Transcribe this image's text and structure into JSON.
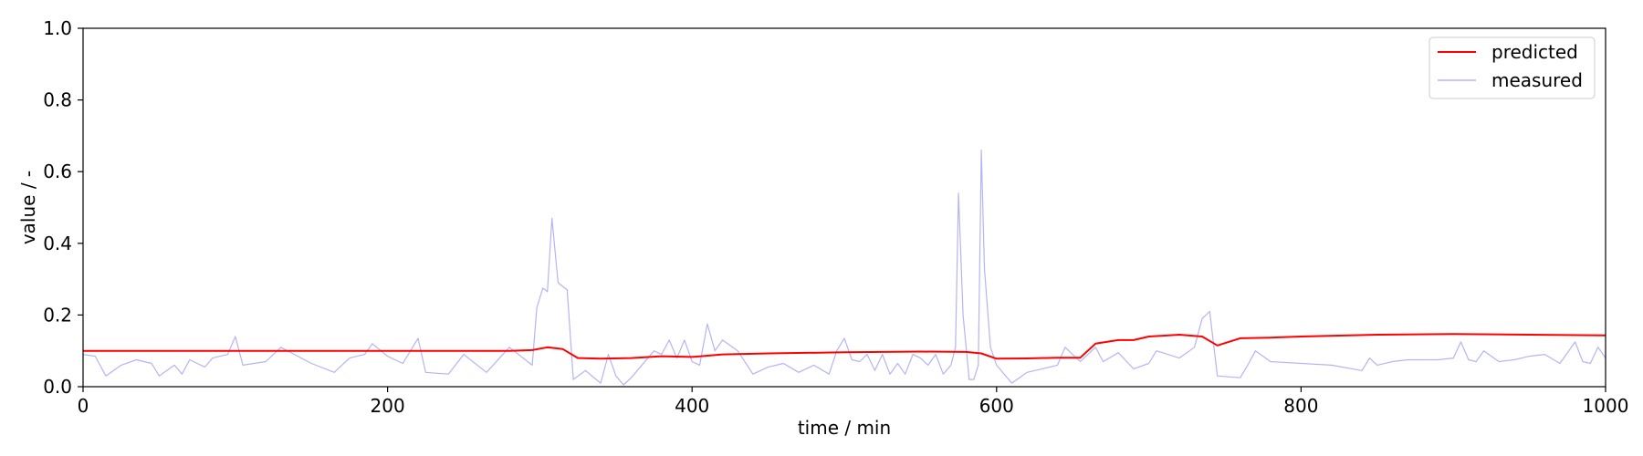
{
  "chart_data": {
    "type": "line",
    "title": "",
    "xlabel": "time / min",
    "ylabel": "value / -",
    "xlim": [
      0,
      1000
    ],
    "ylim": [
      0,
      1.0
    ],
    "xticks": [
      0,
      200,
      400,
      600,
      800,
      1000
    ],
    "xtick_labels": [
      "0",
      "200",
      "400",
      "600",
      "800",
      "1000"
    ],
    "yticks": [
      0,
      0.2,
      0.4,
      0.6,
      0.8,
      1.0
    ],
    "ytick_labels": [
      "0.0",
      "0.2",
      "0.4",
      "0.6",
      "0.8",
      "1.0"
    ],
    "grid": false,
    "legend_position": "top-right",
    "series": [
      {
        "name": "predicted",
        "color": "#ff0000",
        "x": [
          0,
          50,
          100,
          150,
          200,
          250,
          280,
          295,
          305,
          315,
          325,
          340,
          360,
          380,
          400,
          420,
          450,
          500,
          550,
          580,
          590,
          600,
          620,
          640,
          655,
          665,
          680,
          690,
          700,
          720,
          735,
          745,
          760,
          780,
          800,
          850,
          900,
          950,
          1000
        ],
        "y": [
          0.1,
          0.1,
          0.1,
          0.1,
          0.1,
          0.1,
          0.1,
          0.102,
          0.11,
          0.105,
          0.08,
          0.078,
          0.08,
          0.085,
          0.083,
          0.09,
          0.093,
          0.096,
          0.098,
          0.097,
          0.093,
          0.078,
          0.079,
          0.081,
          0.081,
          0.12,
          0.13,
          0.13,
          0.14,
          0.145,
          0.14,
          0.115,
          0.135,
          0.137,
          0.14,
          0.145,
          0.147,
          0.145,
          0.143
        ]
      },
      {
        "name": "measured",
        "color": "#b4b4f5",
        "x": [
          0,
          8,
          15,
          25,
          35,
          45,
          50,
          55,
          60,
          65,
          70,
          75,
          80,
          85,
          95,
          100,
          105,
          120,
          130,
          150,
          165,
          175,
          185,
          190,
          200,
          210,
          220,
          225,
          240,
          250,
          265,
          280,
          295,
          298,
          302,
          305,
          308,
          312,
          318,
          322,
          330,
          340,
          345,
          350,
          355,
          360,
          375,
          380,
          385,
          390,
          395,
          400,
          405,
          410,
          415,
          420,
          430,
          440,
          450,
          460,
          470,
          480,
          490,
          495,
          500,
          505,
          510,
          515,
          520,
          525,
          530,
          535,
          540,
          545,
          550,
          555,
          560,
          565,
          570,
          573,
          575,
          578,
          582,
          585,
          588,
          590,
          592,
          596,
          600,
          610,
          620,
          630,
          640,
          645,
          655,
          665,
          670,
          680,
          690,
          700,
          705,
          720,
          730,
          735,
          740,
          745,
          760,
          765,
          770,
          780,
          820,
          840,
          845,
          850,
          860,
          870,
          880,
          890,
          900,
          905,
          910,
          915,
          920,
          930,
          940,
          950,
          960,
          970,
          980,
          985,
          990,
          995,
          1000
        ],
        "y": [
          0.09,
          0.085,
          0.03,
          0.06,
          0.075,
          0.065,
          0.03,
          0.045,
          0.06,
          0.035,
          0.075,
          0.065,
          0.055,
          0.08,
          0.09,
          0.14,
          0.06,
          0.07,
          0.11,
          0.065,
          0.04,
          0.08,
          0.09,
          0.12,
          0.085,
          0.065,
          0.135,
          0.04,
          0.035,
          0.09,
          0.04,
          0.11,
          0.06,
          0.22,
          0.275,
          0.265,
          0.47,
          0.29,
          0.27,
          0.02,
          0.045,
          0.01,
          0.09,
          0.03,
          0.005,
          0.025,
          0.1,
          0.09,
          0.13,
          0.08,
          0.13,
          0.07,
          0.06,
          0.175,
          0.1,
          0.13,
          0.1,
          0.035,
          0.055,
          0.065,
          0.04,
          0.06,
          0.035,
          0.1,
          0.135,
          0.075,
          0.07,
          0.09,
          0.045,
          0.09,
          0.035,
          0.065,
          0.035,
          0.09,
          0.08,
          0.06,
          0.09,
          0.035,
          0.06,
          0.11,
          0.54,
          0.2,
          0.02,
          0.02,
          0.06,
          0.66,
          0.33,
          0.11,
          0.06,
          0.01,
          0.04,
          0.05,
          0.06,
          0.11,
          0.07,
          0.11,
          0.07,
          0.095,
          0.05,
          0.065,
          0.1,
          0.08,
          0.11,
          0.19,
          0.21,
          0.03,
          0.025,
          0.06,
          0.1,
          0.07,
          0.06,
          0.045,
          0.08,
          0.06,
          0.07,
          0.075,
          0.075,
          0.075,
          0.08,
          0.125,
          0.075,
          0.07,
          0.1,
          0.07,
          0.075,
          0.085,
          0.09,
          0.065,
          0.125,
          0.07,
          0.065,
          0.11,
          0.08
        ]
      }
    ]
  }
}
